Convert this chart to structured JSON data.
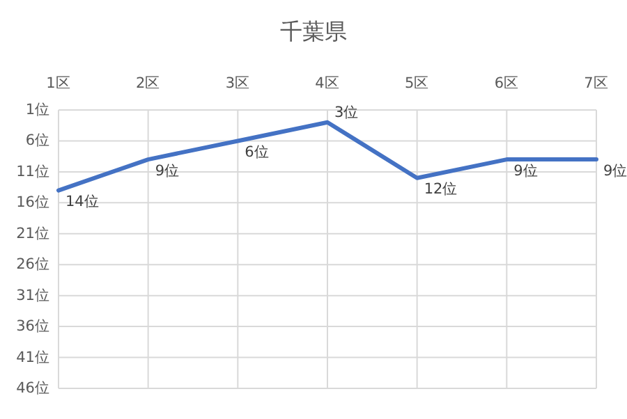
{
  "chart_data": {
    "type": "line",
    "title": "千葉県",
    "categories": [
      "1区",
      "2区",
      "3区",
      "4区",
      "5区",
      "6区",
      "7区"
    ],
    "series": [
      {
        "color": "#4472c4",
        "values": [
          14,
          9,
          6,
          3,
          12,
          9,
          9
        ],
        "value_labels": [
          "14位",
          "9位",
          "6位",
          "3位",
          "12位",
          "9位",
          "9位"
        ]
      }
    ],
    "ylim": [
      46,
      1
    ],
    "yticks": [
      {
        "value": 1,
        "label": "1位"
      },
      {
        "value": 6,
        "label": "6位"
      },
      {
        "value": 11,
        "label": "11位"
      },
      {
        "value": 16,
        "label": "16位"
      },
      {
        "value": 21,
        "label": "21位"
      },
      {
        "value": 26,
        "label": "26位"
      },
      {
        "value": 31,
        "label": "31位"
      },
      {
        "value": 36,
        "label": "36位"
      },
      {
        "value": 41,
        "label": "41位"
      },
      {
        "value": 46,
        "label": "46位"
      }
    ],
    "grid": true,
    "marker": "none",
    "line_style": "solid"
  }
}
